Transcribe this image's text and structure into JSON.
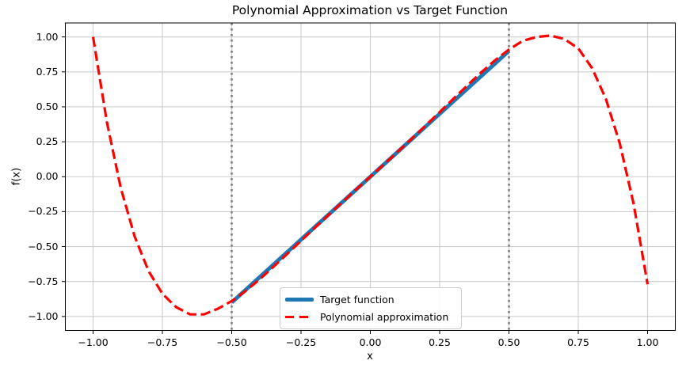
{
  "chart_data": {
    "type": "line",
    "title": "Polynomial Approximation vs Target Function",
    "xlabel": "x",
    "ylabel": "f(x)",
    "xlim": [
      -1.1,
      1.1
    ],
    "ylim": [
      -1.1,
      1.1
    ],
    "grid": true,
    "legend_position": "lower center",
    "x_ticks": [
      -1.0,
      -0.75,
      -0.5,
      -0.25,
      0.0,
      0.25,
      0.5,
      0.75,
      1.0
    ],
    "x_tick_labels": [
      "−1.00",
      "−0.75",
      "−0.50",
      "−0.25",
      "0.00",
      "0.25",
      "0.50",
      "0.75",
      "1.00"
    ],
    "y_ticks": [
      -1.0,
      -0.75,
      -0.5,
      -0.25,
      0.0,
      0.25,
      0.5,
      0.75,
      1.0
    ],
    "y_tick_labels": [
      "−1.00",
      "−0.75",
      "−0.50",
      "−0.25",
      "0.00",
      "0.25",
      "0.50",
      "0.75",
      "1.00"
    ],
    "boundary_lines_x": [
      -0.5,
      0.5
    ],
    "series": [
      {
        "name": "Target function",
        "color": "#1f77b4",
        "line_style": "solid",
        "line_width": 5,
        "x": [
          -0.5,
          -0.25,
          0.0,
          0.25,
          0.5
        ],
        "y": [
          -0.9,
          -0.45,
          0.0,
          0.45,
          0.9
        ]
      },
      {
        "name": "Polynomial approximation",
        "color": "#ff0000",
        "line_style": "dashed",
        "line_width": 3.2,
        "x": [
          -1.0,
          -0.95,
          -0.9,
          -0.85,
          -0.8,
          -0.75,
          -0.7,
          -0.65,
          -0.6,
          -0.55,
          -0.5,
          -0.45,
          -0.4,
          -0.35,
          -0.3,
          -0.25,
          -0.2,
          -0.15,
          -0.1,
          -0.05,
          0.0,
          0.05,
          0.1,
          0.15,
          0.2,
          0.25,
          0.3,
          0.35,
          0.4,
          0.45,
          0.5,
          0.55,
          0.6,
          0.65,
          0.7,
          0.75,
          0.8,
          0.85,
          0.9,
          0.95,
          1.0
        ],
        "y": [
          1.0,
          0.388,
          -0.081,
          -0.428,
          -0.675,
          -0.838,
          -0.934,
          -0.985,
          -0.985,
          -0.945,
          -0.89,
          -0.818,
          -0.736,
          -0.646,
          -0.553,
          -0.459,
          -0.365,
          -0.272,
          -0.181,
          -0.09,
          0.0,
          0.09,
          0.181,
          0.273,
          0.367,
          0.462,
          0.558,
          0.653,
          0.746,
          0.833,
          0.91,
          0.972,
          1.0,
          1.01,
          0.985,
          0.918,
          0.776,
          0.554,
          0.236,
          -0.198,
          -0.77
        ]
      }
    ],
    "styles": {
      "background": "#ffffff",
      "grid_color": "#cdcdcd",
      "axis_color": "#000000",
      "boundary_color": "#7f7f7f",
      "legend_border": "#cccccc"
    }
  }
}
